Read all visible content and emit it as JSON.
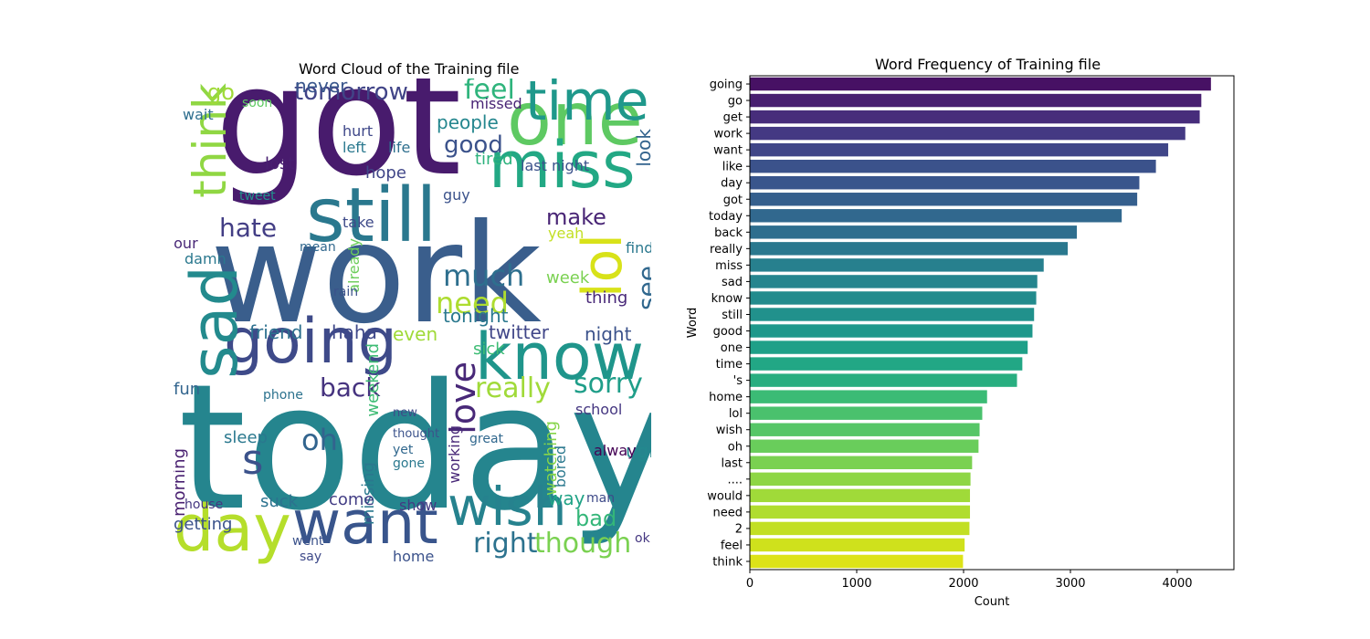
{
  "chart_data": [
    {
      "type": "wordcloud",
      "title": "Word Cloud of the Training file",
      "words": [
        {
          "t": "work",
          "c": "#3a5e8c"
        },
        {
          "t": "today",
          "c": "#25858e"
        },
        {
          "t": "got",
          "c": "#481b6d"
        },
        {
          "t": "want",
          "c": "#39558c"
        },
        {
          "t": "know",
          "c": "#1f958b"
        },
        {
          "t": "going",
          "c": "#3e4a89"
        },
        {
          "t": "one",
          "c": "#5ec962"
        },
        {
          "t": "miss",
          "c": "#22a884"
        },
        {
          "t": "day",
          "c": "#b5de2b"
        },
        {
          "t": "still",
          "c": "#2a788e"
        },
        {
          "t": "time",
          "c": "#1f988b"
        },
        {
          "t": "lol",
          "c": "#d8e219"
        },
        {
          "t": "sad",
          "c": "#238a8d"
        },
        {
          "t": "wish",
          "c": "#26828e"
        },
        {
          "t": "think",
          "c": "#90d743"
        },
        {
          "t": "s",
          "c": "#3b528b"
        },
        {
          "t": "love",
          "c": "#482878"
        },
        {
          "t": "really",
          "c": "#a0da39"
        },
        {
          "t": "right",
          "c": "#2c728e"
        },
        {
          "t": "though",
          "c": "#7ad151"
        },
        {
          "t": "sorry",
          "c": "#1f9e89"
        },
        {
          "t": "see",
          "c": "#31688e"
        },
        {
          "t": "much",
          "c": "#2e6f8e"
        },
        {
          "t": "need",
          "c": "#addc30"
        },
        {
          "t": "back",
          "c": "#46337f"
        },
        {
          "t": "hate",
          "c": "#433e85"
        },
        {
          "t": "feel",
          "c": "#2fb47c"
        },
        {
          "t": "tomorrow",
          "c": "#414487"
        },
        {
          "t": "good",
          "c": "#3b528b"
        },
        {
          "t": "oh",
          "c": "#32648e"
        },
        {
          "t": "make",
          "c": "#482475"
        },
        {
          "t": "bad",
          "c": "#34b679"
        },
        {
          "t": "friend",
          "c": "#2d708e"
        },
        {
          "t": "haha",
          "c": "#3f4889"
        },
        {
          "t": "twitter",
          "c": "#404688"
        },
        {
          "t": "people",
          "c": "#24868e"
        },
        {
          "t": "even",
          "c": "#a0da39"
        },
        {
          "t": "tonight",
          "c": "#2a788e"
        },
        {
          "t": "night",
          "c": "#3b528b"
        },
        {
          "t": "week",
          "c": "#7ad151"
        },
        {
          "t": "thing",
          "c": "#482878"
        },
        {
          "t": "go",
          "c": "#a0da39"
        },
        {
          "t": "look",
          "c": "#33638d"
        },
        {
          "t": "tired",
          "c": "#2db27d"
        },
        {
          "t": "sick",
          "c": "#3dbc74"
        },
        {
          "t": "weekend",
          "c": "#3dbc74"
        },
        {
          "t": "working",
          "c": "#482878"
        },
        {
          "t": "watching",
          "c": "#86d549"
        },
        {
          "t": "missing",
          "c": "#2a788e"
        },
        {
          "t": "morning",
          "c": "#481f70"
        },
        {
          "t": "sleep",
          "c": "#2a788e"
        },
        {
          "t": "getting",
          "c": "#3b528b"
        },
        {
          "t": "suck",
          "c": "#2c728e"
        },
        {
          "t": "come",
          "c": "#433e85"
        },
        {
          "t": "show",
          "c": "#443983"
        },
        {
          "t": "home",
          "c": "#3b528b"
        },
        {
          "t": "way",
          "c": "#20a386"
        },
        {
          "t": "ugh",
          "c": "#23898e"
        },
        {
          "t": "school",
          "c": "#453781"
        },
        {
          "t": "last night",
          "c": "#3b528b"
        },
        {
          "t": "hope",
          "c": "#404688"
        },
        {
          "t": "never",
          "c": "#39568c"
        },
        {
          "t": "lost",
          "c": "#481f70"
        },
        {
          "t": "fun",
          "c": "#32658e"
        },
        {
          "t": "hour",
          "c": "#482777"
        },
        {
          "t": "damn",
          "c": "#2a788e"
        },
        {
          "t": "wait",
          "c": "#2e6e8e"
        },
        {
          "t": "soon",
          "c": "#5ec962"
        },
        {
          "t": "hurt",
          "c": "#3f4889"
        },
        {
          "t": "left",
          "c": "#2a788e"
        },
        {
          "t": "life",
          "c": "#2e6f8e"
        },
        {
          "t": "missed",
          "c": "#482475"
        },
        {
          "t": "yeah",
          "c": "#c2df23"
        },
        {
          "t": "guy",
          "c": "#3b528b"
        },
        {
          "t": "find",
          "c": "#2a788e"
        },
        {
          "t": "already",
          "c": "#6ccd5a"
        },
        {
          "t": "tweet",
          "c": "#21918c"
        },
        {
          "t": "take",
          "c": "#3e4a89"
        },
        {
          "t": "mean",
          "c": "#31688e"
        },
        {
          "t": "rain",
          "c": "#3b528b"
        },
        {
          "t": "phone",
          "c": "#2c728e"
        },
        {
          "t": "great",
          "c": "#31688e"
        },
        {
          "t": "bored",
          "c": "#2a788e"
        },
        {
          "t": "alway",
          "c": "#440154"
        },
        {
          "t": "man",
          "c": "#3e4a89"
        },
        {
          "t": "ok",
          "c": "#453781"
        },
        {
          "t": "house",
          "c": "#453781"
        },
        {
          "t": "say",
          "c": "#3e4a89"
        },
        {
          "t": "went",
          "c": "#3b528b"
        },
        {
          "t": "gone",
          "c": "#2a788e"
        },
        {
          "t": "yet",
          "c": "#31688e"
        },
        {
          "t": "thought",
          "c": "#3b528b"
        },
        {
          "t": "new",
          "c": "#3e4a89"
        }
      ]
    },
    {
      "type": "bar",
      "orientation": "horizontal",
      "title": "Word Frequency of Training file",
      "xlabel": "Count",
      "ylabel": "Word",
      "xlim": [
        0,
        4530
      ],
      "xticks": [
        0,
        1000,
        2000,
        3000,
        4000
      ],
      "categories": [
        "going",
        "go",
        "get",
        "work",
        "want",
        "like",
        "day",
        "got",
        "today",
        "back",
        "really",
        "miss",
        "sad",
        "know",
        "still",
        "good",
        "one",
        "time",
        "'s",
        "home",
        "lol",
        "wish",
        "oh",
        "last",
        "....",
        "would",
        "need",
        "2",
        "feel",
        "think"
      ],
      "values": [
        4315,
        4225,
        4210,
        4075,
        3915,
        3800,
        3645,
        3625,
        3480,
        3060,
        2975,
        2750,
        2690,
        2680,
        2660,
        2645,
        2600,
        2550,
        2500,
        2220,
        2175,
        2150,
        2140,
        2080,
        2065,
        2060,
        2060,
        2055,
        2010,
        1995
      ],
      "colors": [
        "#471164",
        "#481f70",
        "#472d7b",
        "#443983",
        "#404688",
        "#3b528b",
        "#39558c",
        "#355f8d",
        "#31688e",
        "#2e6e8e",
        "#2a788e",
        "#27808e",
        "#25858e",
        "#228b8d",
        "#21918c",
        "#1f988b",
        "#1fa088",
        "#22a785",
        "#28ae80",
        "#3bbb75",
        "#4ac16d",
        "#56c667",
        "#69cd5b",
        "#7ad151",
        "#8ed645",
        "#a0da39",
        "#b0dd2f",
        "#c2df23",
        "#cfe11c",
        "#dde318"
      ]
    }
  ]
}
